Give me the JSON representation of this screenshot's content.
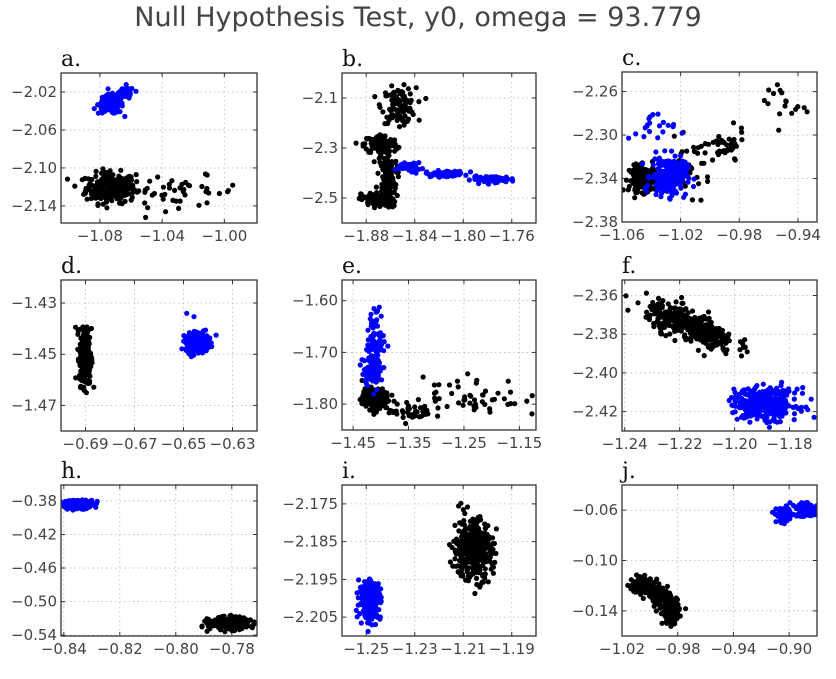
{
  "chart_data": {
    "type": "scatter",
    "title": "Null Hypothesis Test, y0, omega = 93.779",
    "colors": {
      "null": "#000000",
      "observed": "#0000ff"
    },
    "panels": [
      {
        "label": "a.",
        "xlim": [
          -1.105,
          -0.979
        ],
        "ylim": [
          -2.158,
          -2.0
        ],
        "xticks": [
          -1.08,
          -1.04,
          -1.0
        ],
        "xtick_labels": [
          "−1.08",
          "−1.04",
          "−1.00"
        ],
        "yticks": [
          -2.02,
          -2.06,
          -2.1,
          -2.14
        ],
        "ytick_labels": [
          "−2.02",
          "−2.06",
          "−2.10",
          "−2.14"
        ],
        "clusters": [
          {
            "color": "observed",
            "n": 120,
            "cx": -1.073,
            "cy": -2.033,
            "sx": 0.004,
            "sy": 0.005
          },
          {
            "color": "observed",
            "n": 40,
            "cx": -1.064,
            "cy": -2.022,
            "sx": 0.003,
            "sy": 0.004
          },
          {
            "color": "null",
            "n": 260,
            "cx": -1.073,
            "cy": -2.121,
            "sx": 0.008,
            "sy": 0.008
          },
          {
            "color": "null",
            "n": 45,
            "cx": -1.03,
            "cy": -2.125,
            "sx": 0.02,
            "sy": 0.008
          }
        ]
      },
      {
        "label": "b.",
        "xlim": [
          -1.9,
          -1.74
        ],
        "ylim": [
          -2.6,
          -2.0
        ],
        "xticks": [
          -1.88,
          -1.84,
          -1.8,
          -1.76
        ],
        "xtick_labels": [
          "−1.88",
          "−1.84",
          "−1.80",
          "−1.76"
        ],
        "yticks": [
          -2.1,
          -2.3,
          -2.5
        ],
        "ytick_labels": [
          "−2.1",
          "−2.3",
          "−2.5"
        ],
        "clusters": [
          {
            "color": "null",
            "n": 110,
            "cx": -1.853,
            "cy": -2.13,
            "sx": 0.007,
            "sy": 0.035
          },
          {
            "color": "null",
            "n": 110,
            "cx": -1.868,
            "cy": -2.285,
            "sx": 0.007,
            "sy": 0.02
          },
          {
            "color": "null",
            "n": 110,
            "cx": -1.863,
            "cy": -2.42,
            "sx": 0.004,
            "sy": 0.06
          },
          {
            "color": "null",
            "n": 80,
            "cx": -1.87,
            "cy": -2.505,
            "sx": 0.007,
            "sy": 0.015
          },
          {
            "color": "observed",
            "n": 50,
            "cx": -1.845,
            "cy": -2.375,
            "sx": 0.005,
            "sy": 0.008
          },
          {
            "color": "observed",
            "n": 60,
            "cx": -1.815,
            "cy": -2.403,
            "sx": 0.008,
            "sy": 0.006
          },
          {
            "color": "observed",
            "n": 70,
            "cx": -1.775,
            "cy": -2.425,
            "sx": 0.009,
            "sy": 0.006
          }
        ]
      },
      {
        "label": "c.",
        "xlim": [
          -1.06,
          -0.927
        ],
        "ylim": [
          -2.38,
          -2.242
        ],
        "xticks": [
          -1.06,
          -1.02,
          -0.98,
          -0.94
        ],
        "xtick_labels": [
          "−1.06",
          "−1.02",
          "−0.98",
          "−0.94"
        ],
        "yticks": [
          -2.26,
          -2.3,
          -2.34,
          -2.38
        ],
        "ytick_labels": [
          "−2.26",
          "−2.30",
          "−2.34",
          "−2.38"
        ],
        "clusters": [
          {
            "color": "null",
            "n": 180,
            "cx": -1.045,
            "cy": -2.34,
            "sx": 0.005,
            "sy": 0.006
          },
          {
            "color": "null",
            "n": 40,
            "cx": -1.015,
            "cy": -2.33,
            "sx": 0.008,
            "sy": 0.012
          },
          {
            "color": "null",
            "n": 40,
            "cx": -0.99,
            "cy": -2.312,
            "sx": 0.007,
            "sy": 0.008
          },
          {
            "color": "null",
            "n": 18,
            "cx": -0.95,
            "cy": -2.27,
            "sx": 0.009,
            "sy": 0.012
          },
          {
            "color": "observed",
            "n": 200,
            "cx": -1.028,
            "cy": -2.338,
            "sx": 0.006,
            "sy": 0.009
          },
          {
            "color": "observed",
            "n": 20,
            "cx": -1.04,
            "cy": -2.295,
            "sx": 0.008,
            "sy": 0.008
          }
        ]
      },
      {
        "label": "d.",
        "xlim": [
          -0.7,
          -0.62
        ],
        "ylim": [
          -1.48,
          -1.421
        ],
        "xticks": [
          -0.69,
          -0.67,
          -0.65,
          -0.63
        ],
        "xtick_labels": [
          "−0.69",
          "−0.67",
          "−0.65",
          "−0.63"
        ],
        "yticks": [
          -1.43,
          -1.45,
          -1.47
        ],
        "ytick_labels": [
          "−1.43",
          "−1.45",
          "−1.47"
        ],
        "clusters": [
          {
            "color": "null",
            "n": 300,
            "cx": -0.69,
            "cy": -1.451,
            "sx": 0.0012,
            "sy": 0.0055
          },
          {
            "color": "observed",
            "n": 250,
            "cx": -0.6445,
            "cy": -1.4455,
            "sx": 0.0022,
            "sy": 0.0018
          },
          {
            "color": "observed",
            "n": 8,
            "cx": -0.645,
            "cy": -1.44,
            "sx": 0.004,
            "sy": 0.004
          }
        ]
      },
      {
        "label": "e.",
        "xlim": [
          -1.47,
          -1.12
        ],
        "ylim": [
          -1.85,
          -1.56
        ],
        "xticks": [
          -1.45,
          -1.35,
          -1.25,
          -1.15
        ],
        "xtick_labels": [
          "−1.45",
          "−1.35",
          "−1.25",
          "−1.15"
        ],
        "yticks": [
          -1.6,
          -1.7,
          -1.8
        ],
        "ytick_labels": [
          "−1.60",
          "−1.70",
          "−1.80"
        ],
        "clusters": [
          {
            "color": "observed",
            "n": 90,
            "cx": -1.408,
            "cy": -1.68,
            "sx": 0.008,
            "sy": 0.03
          },
          {
            "color": "observed",
            "n": 70,
            "cx": -1.418,
            "cy": -1.735,
            "sx": 0.008,
            "sy": 0.015
          },
          {
            "color": "null",
            "n": 200,
            "cx": -1.41,
            "cy": -1.79,
            "sx": 0.012,
            "sy": 0.01
          },
          {
            "color": "null",
            "n": 40,
            "cx": -1.345,
            "cy": -1.815,
            "sx": 0.02,
            "sy": 0.01
          },
          {
            "color": "null",
            "n": 50,
            "cx": -1.235,
            "cy": -1.785,
            "sx": 0.045,
            "sy": 0.02
          }
        ]
      },
      {
        "label": "f.",
        "xlim": [
          -1.241,
          -1.17
        ],
        "ylim": [
          -2.43,
          -2.352
        ],
        "xticks": [
          -1.24,
          -1.22,
          -1.2,
          -1.18
        ],
        "xtick_labels": [
          "−1.24",
          "−1.22",
          "−1.20",
          "−1.18"
        ],
        "yticks": [
          -2.36,
          -2.38,
          -2.4,
          -2.42
        ],
        "ytick_labels": [
          "−2.36",
          "−2.38",
          "−2.40",
          "−2.42"
        ],
        "clusters": [
          {
            "color": "null",
            "n": 380,
            "cx": -1.216,
            "cy": -2.376,
            "sx": 0.008,
            "sy": 0.004,
            "slope": -0.58
          },
          {
            "color": "observed",
            "n": 260,
            "cx": -1.187,
            "cy": -2.416,
            "sx": 0.005,
            "sy": 0.004
          },
          {
            "color": "observed",
            "n": 90,
            "cx": -1.195,
            "cy": -2.416,
            "sx": 0.003,
            "sy": 0.004
          }
        ]
      },
      {
        "label": "h.",
        "xlim": [
          -0.841,
          -0.771
        ],
        "ylim": [
          -0.541,
          -0.361
        ],
        "xticks": [
          -0.84,
          -0.82,
          -0.8,
          -0.78
        ],
        "xtick_labels": [
          "−0.84",
          "−0.82",
          "−0.80",
          "−0.78"
        ],
        "yticks": [
          -0.38,
          -0.42,
          -0.46,
          -0.5,
          -0.54
        ],
        "ytick_labels": [
          "−0.38",
          "−0.42",
          "−0.46",
          "−0.50",
          "−0.54"
        ],
        "clusters": [
          {
            "color": "observed",
            "n": 200,
            "cx": -0.835,
            "cy": -0.384,
            "sx": 0.0028,
            "sy": 0.0025
          },
          {
            "color": "null",
            "n": 300,
            "cx": -0.781,
            "cy": -0.526,
            "sx": 0.0035,
            "sy": 0.0035
          }
        ]
      },
      {
        "label": "i.",
        "xlim": [
          -1.26,
          -1.18
        ],
        "ylim": [
          -2.21,
          -2.17
        ],
        "xticks": [
          -1.25,
          -1.23,
          -1.21,
          -1.19
        ],
        "xtick_labels": [
          "−1.25",
          "−1.23",
          "−1.21",
          "−1.19"
        ],
        "yticks": [
          -2.175,
          -2.185,
          -2.195,
          -2.205
        ],
        "ytick_labels": [
          "−2.175",
          "−2.185",
          "−2.195",
          "−2.205"
        ],
        "clusters": [
          {
            "color": "null",
            "n": 380,
            "cx": -1.206,
            "cy": -2.187,
            "sx": 0.004,
            "sy": 0.004
          },
          {
            "color": "observed",
            "n": 230,
            "cx": -1.2485,
            "cy": -2.2005,
            "sx": 0.0022,
            "sy": 0.0025
          }
        ]
      },
      {
        "label": "j.",
        "xlim": [
          -1.02,
          -0.88
        ],
        "ylim": [
          -0.16,
          -0.04
        ],
        "xticks": [
          -1.02,
          -0.98,
          -0.94,
          -0.9
        ],
        "xtick_labels": [
          "−1.02",
          "−0.98",
          "−0.94",
          "−0.90"
        ],
        "yticks": [
          -0.06,
          -0.1,
          -0.14
        ],
        "ytick_labels": [
          "−0.06",
          "−0.10",
          "−0.14"
        ],
        "clusters": [
          {
            "color": "observed",
            "n": 90,
            "cx": -0.903,
            "cy": -0.064,
            "sx": 0.003,
            "sy": 0.003
          },
          {
            "color": "observed",
            "n": 100,
            "cx": -0.888,
            "cy": -0.06,
            "sx": 0.004,
            "sy": 0.0025
          },
          {
            "color": "null",
            "n": 150,
            "cx": -1.005,
            "cy": -0.12,
            "sx": 0.004,
            "sy": 0.003
          },
          {
            "color": "null",
            "n": 100,
            "cx": -0.993,
            "cy": -0.129,
            "sx": 0.003,
            "sy": 0.004
          },
          {
            "color": "null",
            "n": 150,
            "cx": -0.985,
            "cy": -0.14,
            "sx": 0.003,
            "sy": 0.005
          }
        ]
      }
    ]
  }
}
